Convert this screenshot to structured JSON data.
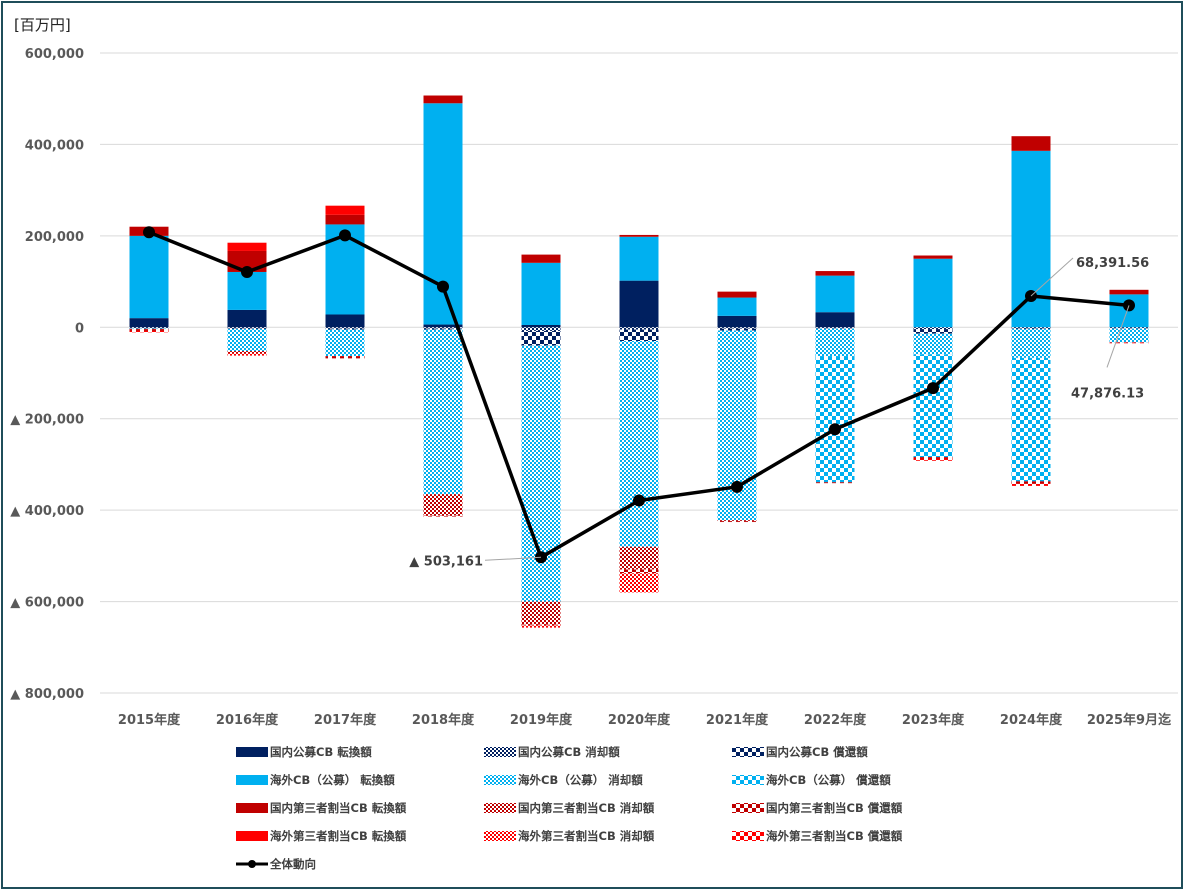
{
  "chart_data": {
    "type": "bar",
    "subtype": "stacked-bar-with-line",
    "unit_label": "[百万円]",
    "ylim": [
      -800000,
      600000
    ],
    "y_ticks": [
      {
        "value": 600000,
        "label": "600,000"
      },
      {
        "value": 400000,
        "label": "400,000"
      },
      {
        "value": 200000,
        "label": "200,000"
      },
      {
        "value": 0,
        "label": "0"
      },
      {
        "value": -200000,
        "label": "▲ 200,000"
      },
      {
        "value": -400000,
        "label": "▲ 400,000"
      },
      {
        "value": -600000,
        "label": "▲ 600,000"
      },
      {
        "value": -800000,
        "label": "▲ 800,000"
      }
    ],
    "categories": [
      "2015年度",
      "2016年度",
      "2017年度",
      "2018年度",
      "2019年度",
      "2020年度",
      "2021年度",
      "2022年度",
      "2023年度",
      "2024年度",
      "2025年9月迄"
    ],
    "series": [
      {
        "name": "国内公募CB 転換額",
        "color": "#002060",
        "pattern": "solid",
        "values": [
          20000,
          38000,
          28000,
          6000,
          5000,
          102000,
          25000,
          33000,
          0,
          0,
          0
        ]
      },
      {
        "name": "海外CB（公募） 転換額",
        "color": "#00B0F0",
        "pattern": "solid",
        "values": [
          180000,
          83000,
          197000,
          484000,
          136000,
          96000,
          40000,
          80000,
          150000,
          386000,
          72000
        ]
      },
      {
        "name": "国内第三者割当CB 転換額",
        "color": "#C00000",
        "pattern": "solid",
        "values": [
          20000,
          46000,
          21000,
          17000,
          18000,
          4000,
          13000,
          10000,
          7000,
          32000,
          10000
        ]
      },
      {
        "name": "海外第三者割当CB 転換額",
        "color": "#FF0000",
        "pattern": "solid",
        "values": [
          0,
          18000,
          20000,
          0,
          0,
          0,
          0,
          0,
          0,
          0,
          0
        ]
      },
      {
        "name": "国内公募CB 消却額",
        "color": "#002060",
        "pattern": "fine",
        "values": [
          -2000,
          -3000,
          -3000,
          -3000,
          -8000,
          -5000,
          -3000,
          -2000,
          -4000,
          -3000,
          -2000
        ]
      },
      {
        "name": "国内公募CB 償還額",
        "color": "#002060",
        "pattern": "check",
        "values": [
          -1000,
          -1000,
          -2000,
          -2000,
          -32000,
          -25000,
          -4000,
          -1000,
          -10000,
          -1000,
          -1000
        ]
      },
      {
        "name": "海外CB（公募） 消却額",
        "color": "#00B0F0",
        "pattern": "fine",
        "values": [
          -1000,
          -48000,
          -58000,
          -360000,
          -560000,
          -450000,
          -415000,
          -60000,
          -45000,
          -63000,
          -30000
        ]
      },
      {
        "name": "海外CB（公募） 償還額",
        "color": "#00B0F0",
        "pattern": "check",
        "values": [
          0,
          0,
          0,
          0,
          0,
          0,
          0,
          -276000,
          -225000,
          -270000,
          0
        ]
      },
      {
        "name": "国内第三者割当CB 消却額",
        "color": "#C00000",
        "pattern": "fine",
        "values": [
          0,
          -5000,
          0,
          -47000,
          -50000,
          -50000,
          -2000,
          0,
          0,
          0,
          0
        ]
      },
      {
        "name": "国内第三者割当CB 償還額",
        "color": "#C00000",
        "pattern": "check",
        "values": [
          -4000,
          0,
          -5000,
          -2000,
          -2000,
          -8000,
          -2000,
          -2000,
          -3000,
          -5000,
          0
        ]
      },
      {
        "name": "海外第三者割当CB 消却額",
        "color": "#FF0000",
        "pattern": "fine",
        "values": [
          0,
          -5000,
          0,
          0,
          -5000,
          -42000,
          0,
          0,
          0,
          0,
          0
        ]
      },
      {
        "name": "海外第三者割当CB 償還額",
        "color": "#FF0000",
        "pattern": "check",
        "values": [
          -3000,
          0,
          0,
          0,
          0,
          0,
          0,
          0,
          -5000,
          -5000,
          -2000
        ]
      }
    ],
    "line": {
      "name": "全体動向",
      "color": "#000000",
      "values": [
        208000,
        121000,
        201000,
        89000,
        -503161,
        -379000,
        -349000,
        -223000,
        -133000,
        68391.56,
        47876.13
      ]
    },
    "annotations": [
      {
        "category_index": 4,
        "text": "▲ 503,161"
      },
      {
        "category_index": 9,
        "text": "68,391.56"
      },
      {
        "category_index": 10,
        "text": "47,876.13"
      }
    ],
    "legend_order": [
      "国内公募CB 転換額",
      "国内公募CB 消却額",
      "国内公募CB 償還額",
      "海外CB（公募） 転換額",
      "海外CB（公募） 消却額",
      "海外CB（公募） 償還額",
      "国内第三者割当CB 転換額",
      "国内第三者割当CB 消却額",
      "国内第三者割当CB 償還額",
      "海外第三者割当CB 転換額",
      "海外第三者割当CB 消却額",
      "海外第三者割当CB 償還額",
      "全体動向"
    ],
    "legend_position": "bottom",
    "grid": true
  }
}
